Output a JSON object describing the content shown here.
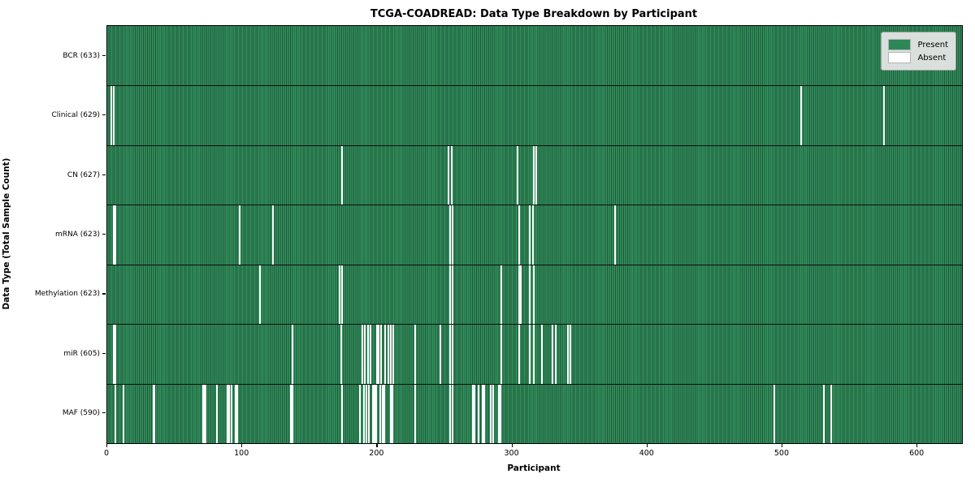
{
  "chart_data": {
    "type": "heatmap",
    "title": "TCGA-COADREAD: Data Type Breakdown by Participant",
    "xlabel": "Participant",
    "ylabel": "Data Type (Total Sample Count)",
    "x_ticks": [
      0,
      100,
      200,
      300,
      400,
      500,
      600
    ],
    "x_range": [
      0,
      633
    ],
    "n_participants": 633,
    "grid": false,
    "legend_position": "upper right",
    "legend": {
      "present_label": "Present",
      "absent_label": "Absent",
      "present_color": "#2e8757",
      "absent_color": "#ffffff"
    },
    "colors": {
      "present_fill": "#33905e",
      "present_edge": "#1d5838",
      "absent_fill": "#fcfcfc",
      "row_separator": "#0d0d0d"
    },
    "rows": [
      {
        "data_type": "BCR",
        "label": "BCR (633)",
        "present_count": 633,
        "absent_count": 0,
        "absent_participants": []
      },
      {
        "data_type": "Clinical",
        "label": "Clinical (629)",
        "present_count": 629,
        "absent_count": 4,
        "absent_participants": [
          3,
          5,
          514,
          575
        ]
      },
      {
        "data_type": "CN",
        "label": "CN (627)",
        "present_count": 627,
        "absent_count": 6,
        "absent_participants": [
          174,
          253,
          255,
          304,
          316,
          318
        ]
      },
      {
        "data_type": "mRNA",
        "label": "mRNA (623)",
        "present_count": 623,
        "absent_count": 10,
        "absent_participants": [
          5,
          6,
          98,
          123,
          254,
          256,
          305,
          313,
          315,
          376
        ]
      },
      {
        "data_type": "Methylation",
        "label": "Methylation (623)",
        "present_count": 623,
        "absent_count": 10,
        "absent_participants": [
          113,
          172,
          174,
          254,
          256,
          292,
          305,
          306,
          313,
          316
        ]
      },
      {
        "data_type": "miR",
        "label": "miR (605)",
        "present_count": 605,
        "absent_count": 28,
        "absent_participants": [
          5,
          6,
          137,
          173,
          189,
          191,
          193,
          195,
          200,
          201,
          203,
          206,
          208,
          210,
          212,
          228,
          247,
          254,
          256,
          292,
          305,
          313,
          316,
          322,
          330,
          332,
          341,
          343
        ]
      },
      {
        "data_type": "MAF",
        "label": "MAF (590)",
        "present_count": 590,
        "absent_count": 43,
        "absent_participants": [
          6,
          12,
          34,
          35,
          71,
          72,
          73,
          81,
          89,
          90,
          92,
          95,
          96,
          136,
          137,
          174,
          187,
          190,
          192,
          194,
          197,
          198,
          199,
          202,
          204,
          205,
          210,
          211,
          228,
          254,
          256,
          271,
          272,
          275,
          278,
          279,
          284,
          286,
          290,
          291,
          494,
          531,
          536
        ]
      }
    ]
  }
}
